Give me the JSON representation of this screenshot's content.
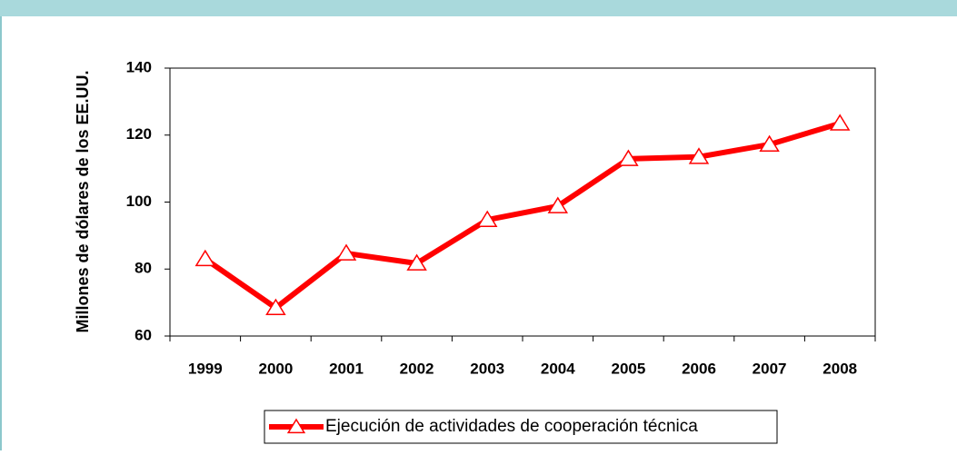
{
  "chart_data": {
    "type": "line",
    "y_label": "Millones de dólares de los EE.UU.",
    "categories": [
      "1999",
      "2000",
      "2001",
      "2002",
      "2003",
      "2004",
      "2005",
      "2006",
      "2007",
      "2008"
    ],
    "series": [
      {
        "name": "Ejecución de actividades de cooperación técnica",
        "color": "#ff0000",
        "values": [
          83,
          68.4,
          84.7,
          81.7,
          94.7,
          98.8,
          112.9,
          113.5,
          117.2,
          123.5
        ]
      }
    ],
    "ylim": [
      60,
      140
    ],
    "yticks": [
      60,
      80,
      100,
      120,
      140
    ],
    "grid": false,
    "legend": "bottom"
  }
}
